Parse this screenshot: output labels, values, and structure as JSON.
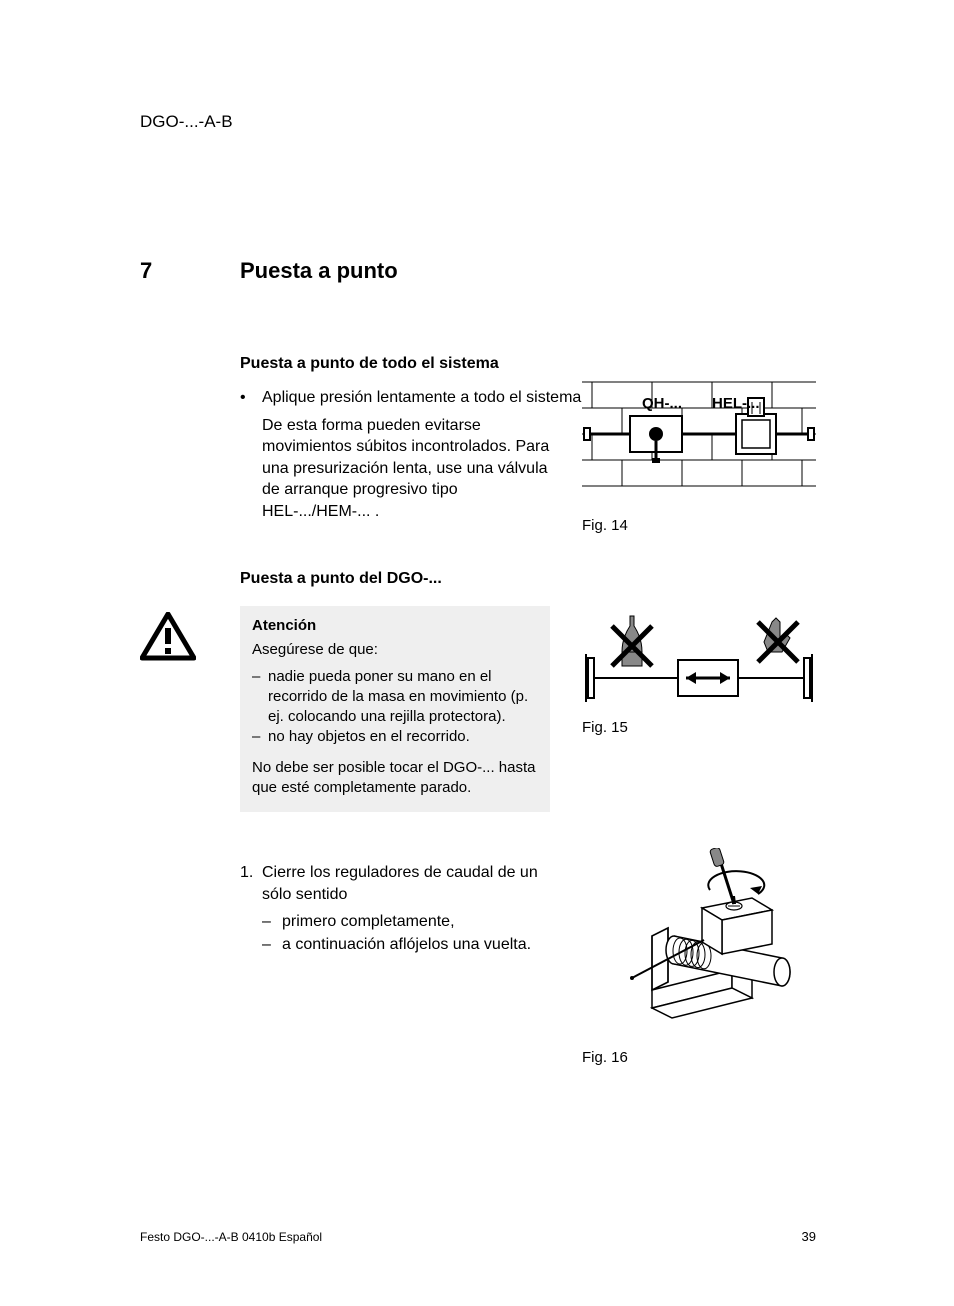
{
  "header": "DGO-...-A-B",
  "section": {
    "num": "7",
    "title": "Puesta a punto"
  },
  "block1": {
    "heading": "Puesta a punto de todo el sistema",
    "bullet": "Aplique presión lentamente a todo el sistema.",
    "para": "De esta forma pueden evitarse movimientos súbitos incontrolados. Para una presurización lenta, use una válvula de arranque progresivo tipo HEL-.../HEM-... ."
  },
  "fig14": {
    "caption": "Fig. 14",
    "label_qh": "QH-...",
    "label_hel": "HEL-...",
    "stroke": "#000000",
    "bg": "#ffffff"
  },
  "block2_heading": "Puesta a punto del DGO-...",
  "warning": {
    "title": "Atención",
    "lead": "Asegúrese de que:",
    "items": [
      "nadie pueda poner su mano en el recorrido de la masa en movimiento (p. ej. colocando una rejilla protectora).",
      "no hay objetos en el recorrido."
    ],
    "tail": "No debe ser posible tocar el DGO-... hasta que esté completamente parado."
  },
  "fig15": {
    "caption": "Fig. 15",
    "stroke": "#000000",
    "bg": "#ffffff"
  },
  "step1": {
    "num": "1.",
    "text": "Cierre los reguladores de caudal de un sólo sentido",
    "subs": [
      "primero completamente,",
      "a continuación aflójelos una vuelta."
    ]
  },
  "fig16": {
    "caption": "Fig. 16",
    "stroke": "#000000",
    "bg": "#ffffff"
  },
  "warn_icon": {
    "stroke": "#000000",
    "fill": "#ffffff"
  },
  "footer": {
    "left": "Festo DGO-...-A-B 0410b Español",
    "page": "39"
  }
}
